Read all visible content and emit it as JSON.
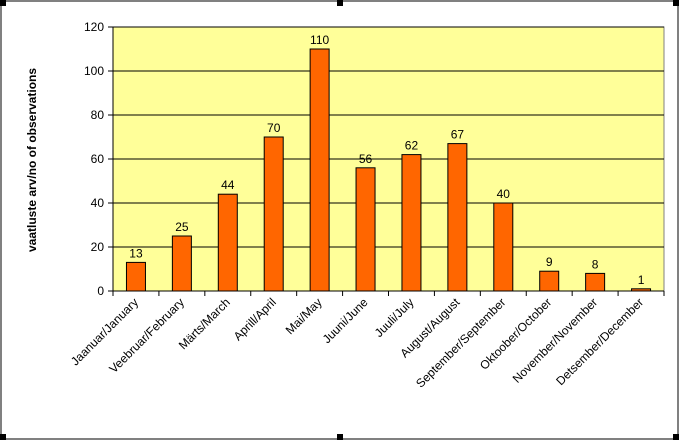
{
  "chart_data": {
    "type": "bar",
    "title": "",
    "xlabel": "",
    "ylabel": "vaatluste arv/no of observations",
    "ylim": [
      0,
      120
    ],
    "yticks": [
      0,
      20,
      40,
      60,
      80,
      100,
      120
    ],
    "grid": true,
    "categories": [
      "Jaanuar/January",
      "Veebruar/February",
      "Märts/March",
      "Aprill/April",
      "Mai/May",
      "Juuni/June",
      "Juuli/July",
      "August/August",
      "September/September",
      "Oktoober/October",
      "November/November",
      "Detsember/December"
    ],
    "values": [
      13,
      25,
      44,
      70,
      110,
      56,
      62,
      67,
      40,
      9,
      8,
      1
    ],
    "colors": {
      "plot_background": "#ffff99",
      "bar_fill": "#ff6600",
      "bar_stroke": "#000000",
      "gridline": "#000000"
    }
  }
}
